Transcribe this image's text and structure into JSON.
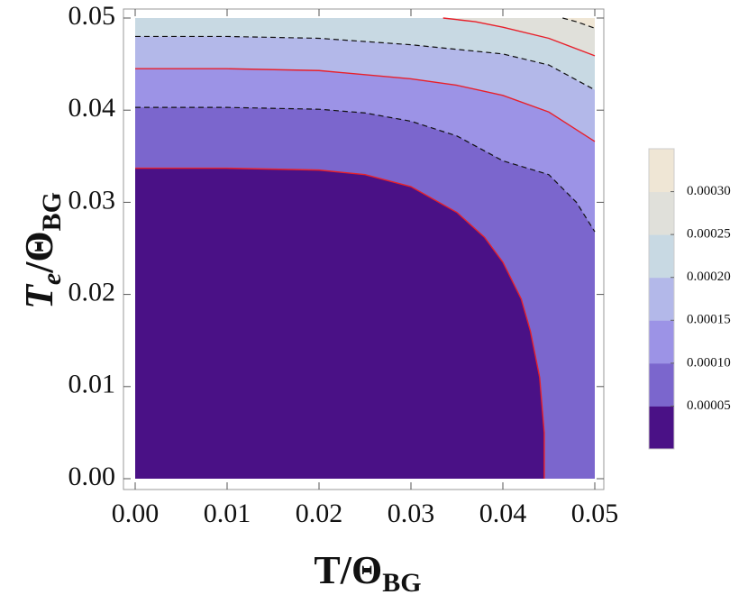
{
  "chart_data": {
    "type": "contour",
    "xlabel": [
      "T/Θ",
      "BG"
    ],
    "ylabel": [
      "T",
      "e",
      "/Θ",
      "BG"
    ],
    "xlim": [
      0,
      0.05
    ],
    "ylim": [
      0,
      0.05
    ],
    "xticks": [
      {
        "value": 0,
        "label": "0.00"
      },
      0.01,
      0.02,
      0.03,
      0.04,
      0.05
    ],
    "yticks": [
      {
        "value": 0,
        "label": "0.00"
      },
      0.01,
      0.02,
      0.03,
      0.04,
      0.05
    ],
    "contours": [
      {
        "fill": "#e0e0da",
        "stroke": "#111111",
        "dashed": true,
        "x": [
          0.0465,
          0.048,
          0.05
        ],
        "y": [
          0.05,
          0.0496,
          0.0489
        ]
      },
      {
        "fill": "#c8d9e3",
        "stroke": "#e8202a",
        "dashed": false,
        "x": [
          0.0335,
          0.037,
          0.04,
          0.045,
          0.05
        ],
        "y": [
          0.05,
          0.0496,
          0.049,
          0.0478,
          0.0459
        ]
      },
      {
        "fill": "#b3b8e9",
        "stroke": "#111111",
        "dashed": true,
        "x": [
          0,
          0.01,
          0.02,
          0.03,
          0.04,
          0.045,
          0.05
        ],
        "y": [
          0.048,
          0.048,
          0.0478,
          0.0471,
          0.0461,
          0.0449,
          0.0422
        ]
      },
      {
        "fill": "#9c93e6",
        "stroke": "#e8202a",
        "dashed": false,
        "x": [
          0,
          0.01,
          0.02,
          0.03,
          0.035,
          0.04,
          0.045,
          0.05
        ],
        "y": [
          0.0445,
          0.0445,
          0.0443,
          0.0434,
          0.0427,
          0.0416,
          0.0398,
          0.0366
        ]
      },
      {
        "fill": "#7b66cd",
        "stroke": "#111111",
        "dashed": true,
        "x": [
          0,
          0.01,
          0.02,
          0.025,
          0.03,
          0.035,
          0.04,
          0.045,
          0.048,
          0.05
        ],
        "y": [
          0.0403,
          0.0403,
          0.0401,
          0.0397,
          0.0388,
          0.0372,
          0.0345,
          0.033,
          0.03,
          0.0268
        ]
      },
      {
        "fill": "#4a1186",
        "stroke": "#e8202a",
        "dashed": false,
        "x": [
          0,
          0.01,
          0.02,
          0.025,
          0.03,
          0.035,
          0.038,
          0.04,
          0.042,
          0.043,
          0.044,
          0.0445,
          0.0445
        ],
        "y": [
          0.0337,
          0.0337,
          0.0335,
          0.033,
          0.0317,
          0.0289,
          0.0262,
          0.0235,
          0.0195,
          0.016,
          0.011,
          0.005,
          0
        ]
      }
    ],
    "colorbar": {
      "colors": [
        "#4a1186",
        "#7b66cd",
        "#9c93e6",
        "#b3b8e9",
        "#c8d9e3",
        "#e0e0da",
        "#efe6d5"
      ],
      "clim": [
        0,
        0.00035
      ],
      "ticks": [
        {
          "value": 5e-05,
          "label": "0.00005"
        },
        {
          "value": 0.0001,
          "label": "0.00010"
        },
        {
          "value": 0.00015,
          "label": "0.00015"
        },
        {
          "value": 0.0002,
          "label": "0.00020"
        },
        {
          "value": 0.00025,
          "label": "0.00025"
        },
        {
          "value": 0.0003,
          "label": "0.00030"
        }
      ]
    }
  }
}
